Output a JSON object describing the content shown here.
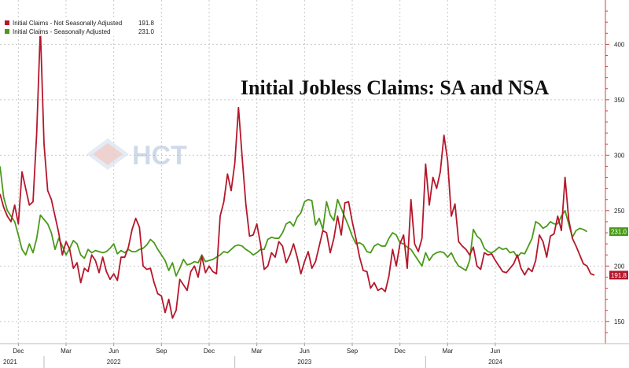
{
  "chart_data": {
    "type": "line",
    "title": "Initial Jobless Claims: SA and NSA",
    "ylim": [
      130,
      440
    ],
    "y_ticks": [
      150,
      200,
      250,
      300,
      350,
      400
    ],
    "x_tick_labels": [
      "Dec",
      "Mar",
      "Jun",
      "Sep",
      "Dec",
      "Mar",
      "Jun",
      "Sep",
      "Dec",
      "Mar",
      "Jun"
    ],
    "x_tick_weeks": [
      0,
      13,
      26,
      39,
      52,
      65,
      78,
      91,
      104,
      117,
      130
    ],
    "year_labels": [
      {
        "label": "2021",
        "week": -3
      },
      {
        "label": "2022",
        "week": 26
      },
      {
        "label": "2023",
        "week": 78
      },
      {
        "label": "2024",
        "week": 130
      }
    ],
    "legend_position": "top-left",
    "series": [
      {
        "name": "Initial Claims - Not Seasonally Adjusted",
        "color": "#b5172b",
        "last_value": "191.8",
        "values": [
          265,
          253,
          245,
          240,
          255,
          238,
          285,
          270,
          255,
          258,
          320,
          415,
          310,
          268,
          260,
          245,
          230,
          210,
          222,
          215,
          198,
          203,
          185,
          198,
          195,
          210,
          205,
          194,
          208,
          195,
          188,
          193,
          187,
          208,
          208,
          217,
          233,
          243,
          235,
          200,
          197,
          198,
          185,
          175,
          173,
          158,
          170,
          153,
          160,
          188,
          183,
          178,
          195,
          200,
          190,
          209,
          194,
          200,
          195,
          193,
          245,
          258,
          283,
          268,
          293,
          343,
          298,
          256,
          227,
          228,
          238,
          220,
          197,
          200,
          212,
          208,
          222,
          218,
          203,
          210,
          220,
          208,
          193,
          204,
          213,
          198,
          204,
          218,
          232,
          230,
          212,
          225,
          245,
          228,
          257,
          258,
          240,
          225,
          208,
          196,
          195,
          180,
          185,
          178,
          180,
          177,
          191,
          215,
          200,
          220,
          228,
          198,
          260,
          220,
          213,
          225,
          292,
          255,
          280,
          270,
          285,
          318,
          295,
          245,
          256,
          222,
          218,
          215,
          210,
          217,
          200,
          197,
          212,
          210,
          211,
          205,
          200,
          195,
          194,
          198,
          202,
          210,
          198,
          192,
          198,
          195,
          205,
          228,
          222,
          208,
          227,
          229,
          245,
          232,
          280,
          242,
          225,
          218,
          210,
          202,
          200,
          193,
          191.8
        ]
      },
      {
        "name": "Initial Claims - Seasonally Adjusted",
        "color": "#4a9a1a",
        "last_value": "231.0",
        "values": [
          290,
          262,
          250,
          245,
          240,
          228,
          215,
          210,
          220,
          212,
          225,
          246,
          242,
          238,
          230,
          215,
          225,
          218,
          210,
          216,
          223,
          220,
          210,
          207,
          215,
          212,
          214,
          213,
          212,
          213,
          216,
          220,
          211,
          214,
          212,
          215,
          213,
          213,
          215,
          216,
          219,
          224,
          221,
          215,
          210,
          205,
          196,
          203,
          191,
          198,
          206,
          201,
          202,
          204,
          203,
          210,
          204,
          205,
          206,
          208,
          210,
          213,
          212,
          215,
          218,
          219,
          218,
          215,
          213,
          210,
          212,
          215,
          215,
          224,
          226,
          225,
          225,
          230,
          238,
          240,
          236,
          244,
          248,
          258,
          260,
          259,
          237,
          243,
          233,
          258,
          246,
          241,
          260,
          252,
          244,
          236,
          227,
          220,
          221,
          219,
          213,
          212,
          218,
          220,
          218,
          218,
          225,
          230,
          228,
          221,
          220,
          217,
          215,
          210,
          205,
          200,
          212,
          205,
          210,
          212,
          213,
          212,
          208,
          212,
          205,
          200,
          198,
          196,
          205,
          233,
          227,
          224,
          216,
          213,
          212,
          214,
          217,
          215,
          216,
          212,
          213,
          208,
          212,
          211,
          218,
          225,
          240,
          238,
          234,
          236,
          240,
          238,
          238,
          245,
          250,
          238,
          226,
          232,
          234,
          233,
          231.0
        ]
      }
    ]
  },
  "watermark": {
    "text": "HCT"
  }
}
